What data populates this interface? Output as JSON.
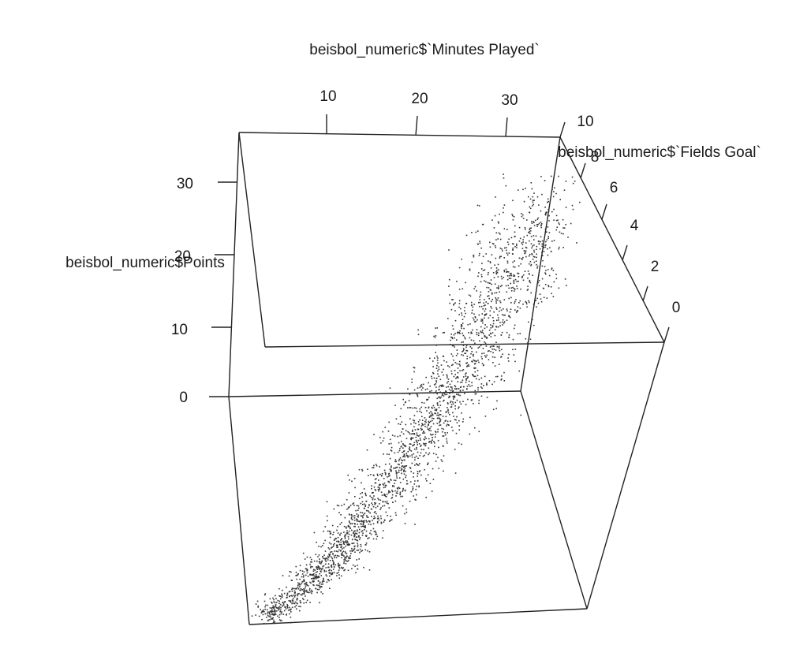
{
  "chart_data": {
    "type": "scatter",
    "projection": "3d",
    "xlabel": "beisbol_numeric$`Minutes Played`",
    "ylabel": "beisbol_numeric$`Fields Goal`",
    "zlabel": "beisbol_numeric$Points",
    "x_ticks": [
      10,
      20,
      30
    ],
    "y_ticks": [
      0,
      2,
      4,
      6,
      8,
      10
    ],
    "z_ticks": [
      0,
      10,
      20,
      30
    ],
    "x_range": [
      0,
      40
    ],
    "y_range": [
      0,
      10
    ],
    "z_range": [
      0,
      38
    ],
    "point_color": "#333333",
    "grid": false,
    "legend": "none"
  }
}
